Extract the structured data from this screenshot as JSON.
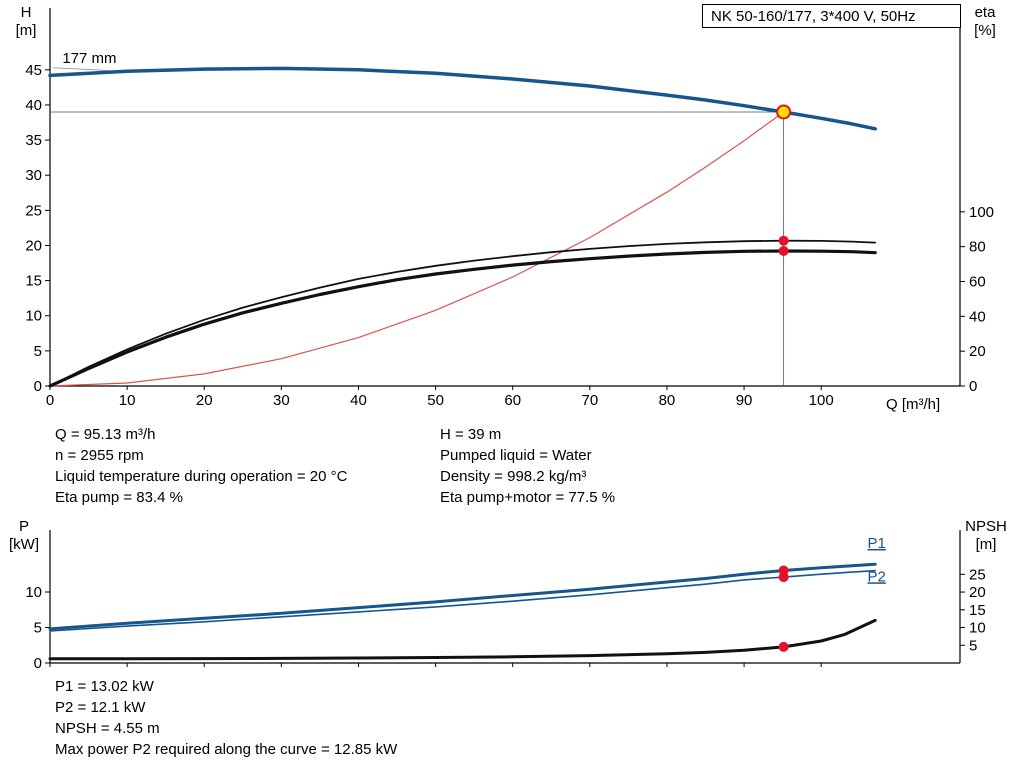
{
  "info": {
    "left": [
      "Q = 95.13 m³/h",
      "n = 2955 rpm",
      "Liquid temperature during operation = 20 °C",
      "Eta pump = 83.4 %"
    ],
    "right": [
      "H = 39 m",
      "Pumped liquid = Water",
      "Density = 998.2 kg/m³",
      "Eta pump+motor = 77.5 %"
    ]
  },
  "footer": [
    "P1 = 13.02 kW",
    "P2 = 12.1 kW",
    "NPSH = 4.55 m",
    "Max power P2 required along the curve = 12.85 kW"
  ],
  "colors": {
    "curve_blue": "#17568c",
    "system_red": "#d9534f",
    "dot_red": "#e8112d",
    "duty_yellow": "#ffdf00",
    "black": "#111111"
  },
  "chart_data": [
    {
      "id": "hq-chart",
      "type": "line",
      "title": "NK 50-160/177, 3*400 V, 50Hz",
      "duty_point": {
        "q": 95.13,
        "h": 39
      },
      "axes": {
        "x": {
          "label": "Q [m³/h]",
          "range": [
            0,
            118
          ],
          "ticks": [
            0,
            10,
            20,
            30,
            40,
            50,
            60,
            70,
            80,
            90,
            100
          ],
          "show_labels": true
        },
        "left": {
          "label": "H",
          "unit": "[m]",
          "range": [
            0,
            53.8
          ],
          "ticks": [
            0,
            5,
            10,
            15,
            20,
            25,
            30,
            35,
            40,
            45
          ]
        },
        "right": {
          "label": "eta",
          "unit": "[%]",
          "range": [
            0,
            217
          ],
          "ticks": [
            0,
            20,
            40,
            60,
            80,
            100
          ]
        }
      },
      "series": [
        {
          "name": "system-curve",
          "scale": "left",
          "color": "#d9534f",
          "width": 1.2,
          "points": [
            [
              0,
              0
            ],
            [
              10,
              0.43
            ],
            [
              20,
              1.72
            ],
            [
              30,
              3.88
            ],
            [
              40,
              6.89
            ],
            [
              50,
              10.77
            ],
            [
              60,
              15.52
            ],
            [
              70,
              21.12
            ],
            [
              80,
              27.59
            ],
            [
              85,
              31.15
            ],
            [
              90,
              34.92
            ],
            [
              95.13,
              39
            ]
          ]
        },
        {
          "name": "eta-pump-curve",
          "scale": "right",
          "color": "#111111",
          "width": 1.8,
          "points": [
            [
              0,
              0
            ],
            [
              5,
              11
            ],
            [
              10,
              21
            ],
            [
              15,
              30
            ],
            [
              20,
              38
            ],
            [
              25,
              45
            ],
            [
              30,
              51
            ],
            [
              35,
              56.5
            ],
            [
              40,
              61.5
            ],
            [
              45,
              65.5
            ],
            [
              50,
              69
            ],
            [
              55,
              72
            ],
            [
              60,
              74.5
            ],
            [
              65,
              76.8
            ],
            [
              70,
              78.7
            ],
            [
              75,
              80.3
            ],
            [
              80,
              81.6
            ],
            [
              85,
              82.5
            ],
            [
              90,
              83.1
            ],
            [
              95.13,
              83.4
            ],
            [
              100,
              83.3
            ],
            [
              104,
              82.9
            ],
            [
              107,
              82.3
            ]
          ]
        },
        {
          "name": "eta-pump-motor-curve",
          "scale": "right",
          "color": "#111111",
          "width": 3.2,
          "points": [
            [
              0,
              0
            ],
            [
              5,
              10
            ],
            [
              10,
              19.5
            ],
            [
              15,
              28
            ],
            [
              20,
              35.5
            ],
            [
              25,
              42
            ],
            [
              30,
              47.5
            ],
            [
              35,
              52.5
            ],
            [
              40,
              57
            ],
            [
              45,
              61
            ],
            [
              50,
              64.3
            ],
            [
              55,
              67
            ],
            [
              60,
              69.4
            ],
            [
              65,
              71.4
            ],
            [
              70,
              73.1
            ],
            [
              75,
              74.6
            ],
            [
              80,
              75.8
            ],
            [
              85,
              76.7
            ],
            [
              90,
              77.3
            ],
            [
              95.13,
              77.5
            ],
            [
              100,
              77.4
            ],
            [
              104,
              77.1
            ],
            [
              107,
              76.5
            ]
          ]
        },
        {
          "name": "pump-curve-177mm",
          "label": "177 mm",
          "scale": "left",
          "color": "#17568c",
          "width": 3.5,
          "points": [
            [
              0,
              44.2
            ],
            [
              10,
              44.8
            ],
            [
              20,
              45.1
            ],
            [
              30,
              45.2
            ],
            [
              40,
              45.0
            ],
            [
              50,
              44.5
            ],
            [
              60,
              43.7
            ],
            [
              70,
              42.7
            ],
            [
              80,
              41.4
            ],
            [
              85,
              40.7
            ],
            [
              90,
              39.9
            ],
            [
              95.13,
              39
            ],
            [
              100,
              38.1
            ],
            [
              104,
              37.3
            ],
            [
              107,
              36.6
            ]
          ]
        }
      ],
      "ref_lines": [
        {
          "scale": "left",
          "points": [
            [
              0,
              39
            ],
            [
              95.13,
              39
            ]
          ],
          "color": "#555555",
          "width": 0.8
        },
        {
          "scale": "left",
          "points": [
            [
              95.13,
              39
            ],
            [
              95.13,
              0
            ]
          ],
          "color": "#555555",
          "width": 0.8
        }
      ],
      "markers": [
        {
          "type": "dot",
          "scale": "right",
          "q": 95.13,
          "v": 83.4,
          "color": "#e8112d",
          "r": 5
        },
        {
          "type": "dot",
          "scale": "right",
          "q": 95.13,
          "v": 77.5,
          "color": "#e8112d",
          "r": 5
        },
        {
          "type": "duty",
          "scale": "left",
          "q": 95.13,
          "v": 39,
          "fill": "#ffdf00",
          "stroke": "#e8112d",
          "r": 6.5
        }
      ],
      "annotations": [
        {
          "type": "text",
          "text": "177 mm",
          "scale": "left",
          "q": 1.6,
          "v": 45.95,
          "anchor": "start",
          "color": "#000000"
        },
        {
          "type": "line",
          "scale": "left",
          "points": [
            [
              0.4,
              45.3
            ],
            [
              7.6,
              44.9
            ]
          ],
          "color": "#888888",
          "width": 0.8
        }
      ]
    },
    {
      "id": "power-npsh-chart",
      "type": "line",
      "title": "",
      "axes": {
        "x": {
          "label": "",
          "range": [
            0,
            118
          ],
          "ticks": [
            0,
            10,
            20,
            30,
            40,
            50,
            60,
            70,
            80,
            90,
            100
          ],
          "show_labels": false
        },
        "left": {
          "label": "P",
          "unit": "[kW]",
          "range": [
            0,
            18.73
          ],
          "ticks": [
            0,
            5,
            10
          ]
        },
        "right": {
          "label": "NPSH",
          "unit": "[m]",
          "range": [
            0,
            37.5
          ],
          "ticks": [
            5,
            10,
            15,
            20,
            25
          ]
        }
      },
      "series": [
        {
          "name": "npsh-curve",
          "scale": "right",
          "color": "#111111",
          "width": 3,
          "points": [
            [
              0,
              1.2
            ],
            [
              10,
              1.2
            ],
            [
              20,
              1.25
            ],
            [
              30,
              1.3
            ],
            [
              40,
              1.4
            ],
            [
              50,
              1.55
            ],
            [
              60,
              1.75
            ],
            [
              70,
              2.1
            ],
            [
              80,
              2.6
            ],
            [
              85,
              3.0
            ],
            [
              90,
              3.6
            ],
            [
              95.13,
              4.55
            ],
            [
              100,
              6.2
            ],
            [
              103,
              8.0
            ],
            [
              105,
              10.0
            ],
            [
              107,
              12.0
            ]
          ]
        },
        {
          "name": "p2-curve",
          "label": "P2",
          "scale": "left",
          "color": "#17568c",
          "width": 1.6,
          "points": [
            [
              0,
              4.5
            ],
            [
              10,
              5.2
            ],
            [
              20,
              5.8
            ],
            [
              30,
              6.5
            ],
            [
              40,
              7.2
            ],
            [
              50,
              7.9
            ],
            [
              60,
              8.7
            ],
            [
              70,
              9.6
            ],
            [
              80,
              10.6
            ],
            [
              85,
              11.1
            ],
            [
              90,
              11.7
            ],
            [
              95.13,
              12.1
            ],
            [
              100,
              12.5
            ],
            [
              104,
              12.8
            ],
            [
              107,
              13.0
            ]
          ]
        },
        {
          "name": "p1-curve",
          "label": "P1",
          "scale": "left",
          "color": "#17568c",
          "width": 3,
          "points": [
            [
              0,
              4.8
            ],
            [
              10,
              5.6
            ],
            [
              20,
              6.3
            ],
            [
              30,
              7.0
            ],
            [
              40,
              7.8
            ],
            [
              50,
              8.6
            ],
            [
              60,
              9.5
            ],
            [
              70,
              10.4
            ],
            [
              80,
              11.4
            ],
            [
              85,
              11.9
            ],
            [
              90,
              12.5
            ],
            [
              95.13,
              13.02
            ],
            [
              100,
              13.4
            ],
            [
              104,
              13.7
            ],
            [
              107,
              13.9
            ]
          ]
        }
      ],
      "ref_lines": [],
      "markers": [
        {
          "type": "dot",
          "scale": "left",
          "q": 95.13,
          "v": 13.02,
          "color": "#e8112d",
          "r": 5
        },
        {
          "type": "dot",
          "scale": "left",
          "q": 95.13,
          "v": 12.1,
          "color": "#e8112d",
          "r": 5
        },
        {
          "type": "dot",
          "scale": "right",
          "q": 95.13,
          "v": 4.55,
          "color": "#e8112d",
          "r": 5
        }
      ],
      "annotations": [
        {
          "type": "text",
          "text": "P1",
          "scale": "left",
          "q": 106,
          "v": 16.2,
          "anchor": "start",
          "color": "#17568c",
          "underline": true
        },
        {
          "type": "text",
          "text": "P2",
          "scale": "left",
          "q": 106,
          "v": 11.5,
          "anchor": "start",
          "color": "#17568c",
          "underline": true
        }
      ]
    }
  ]
}
